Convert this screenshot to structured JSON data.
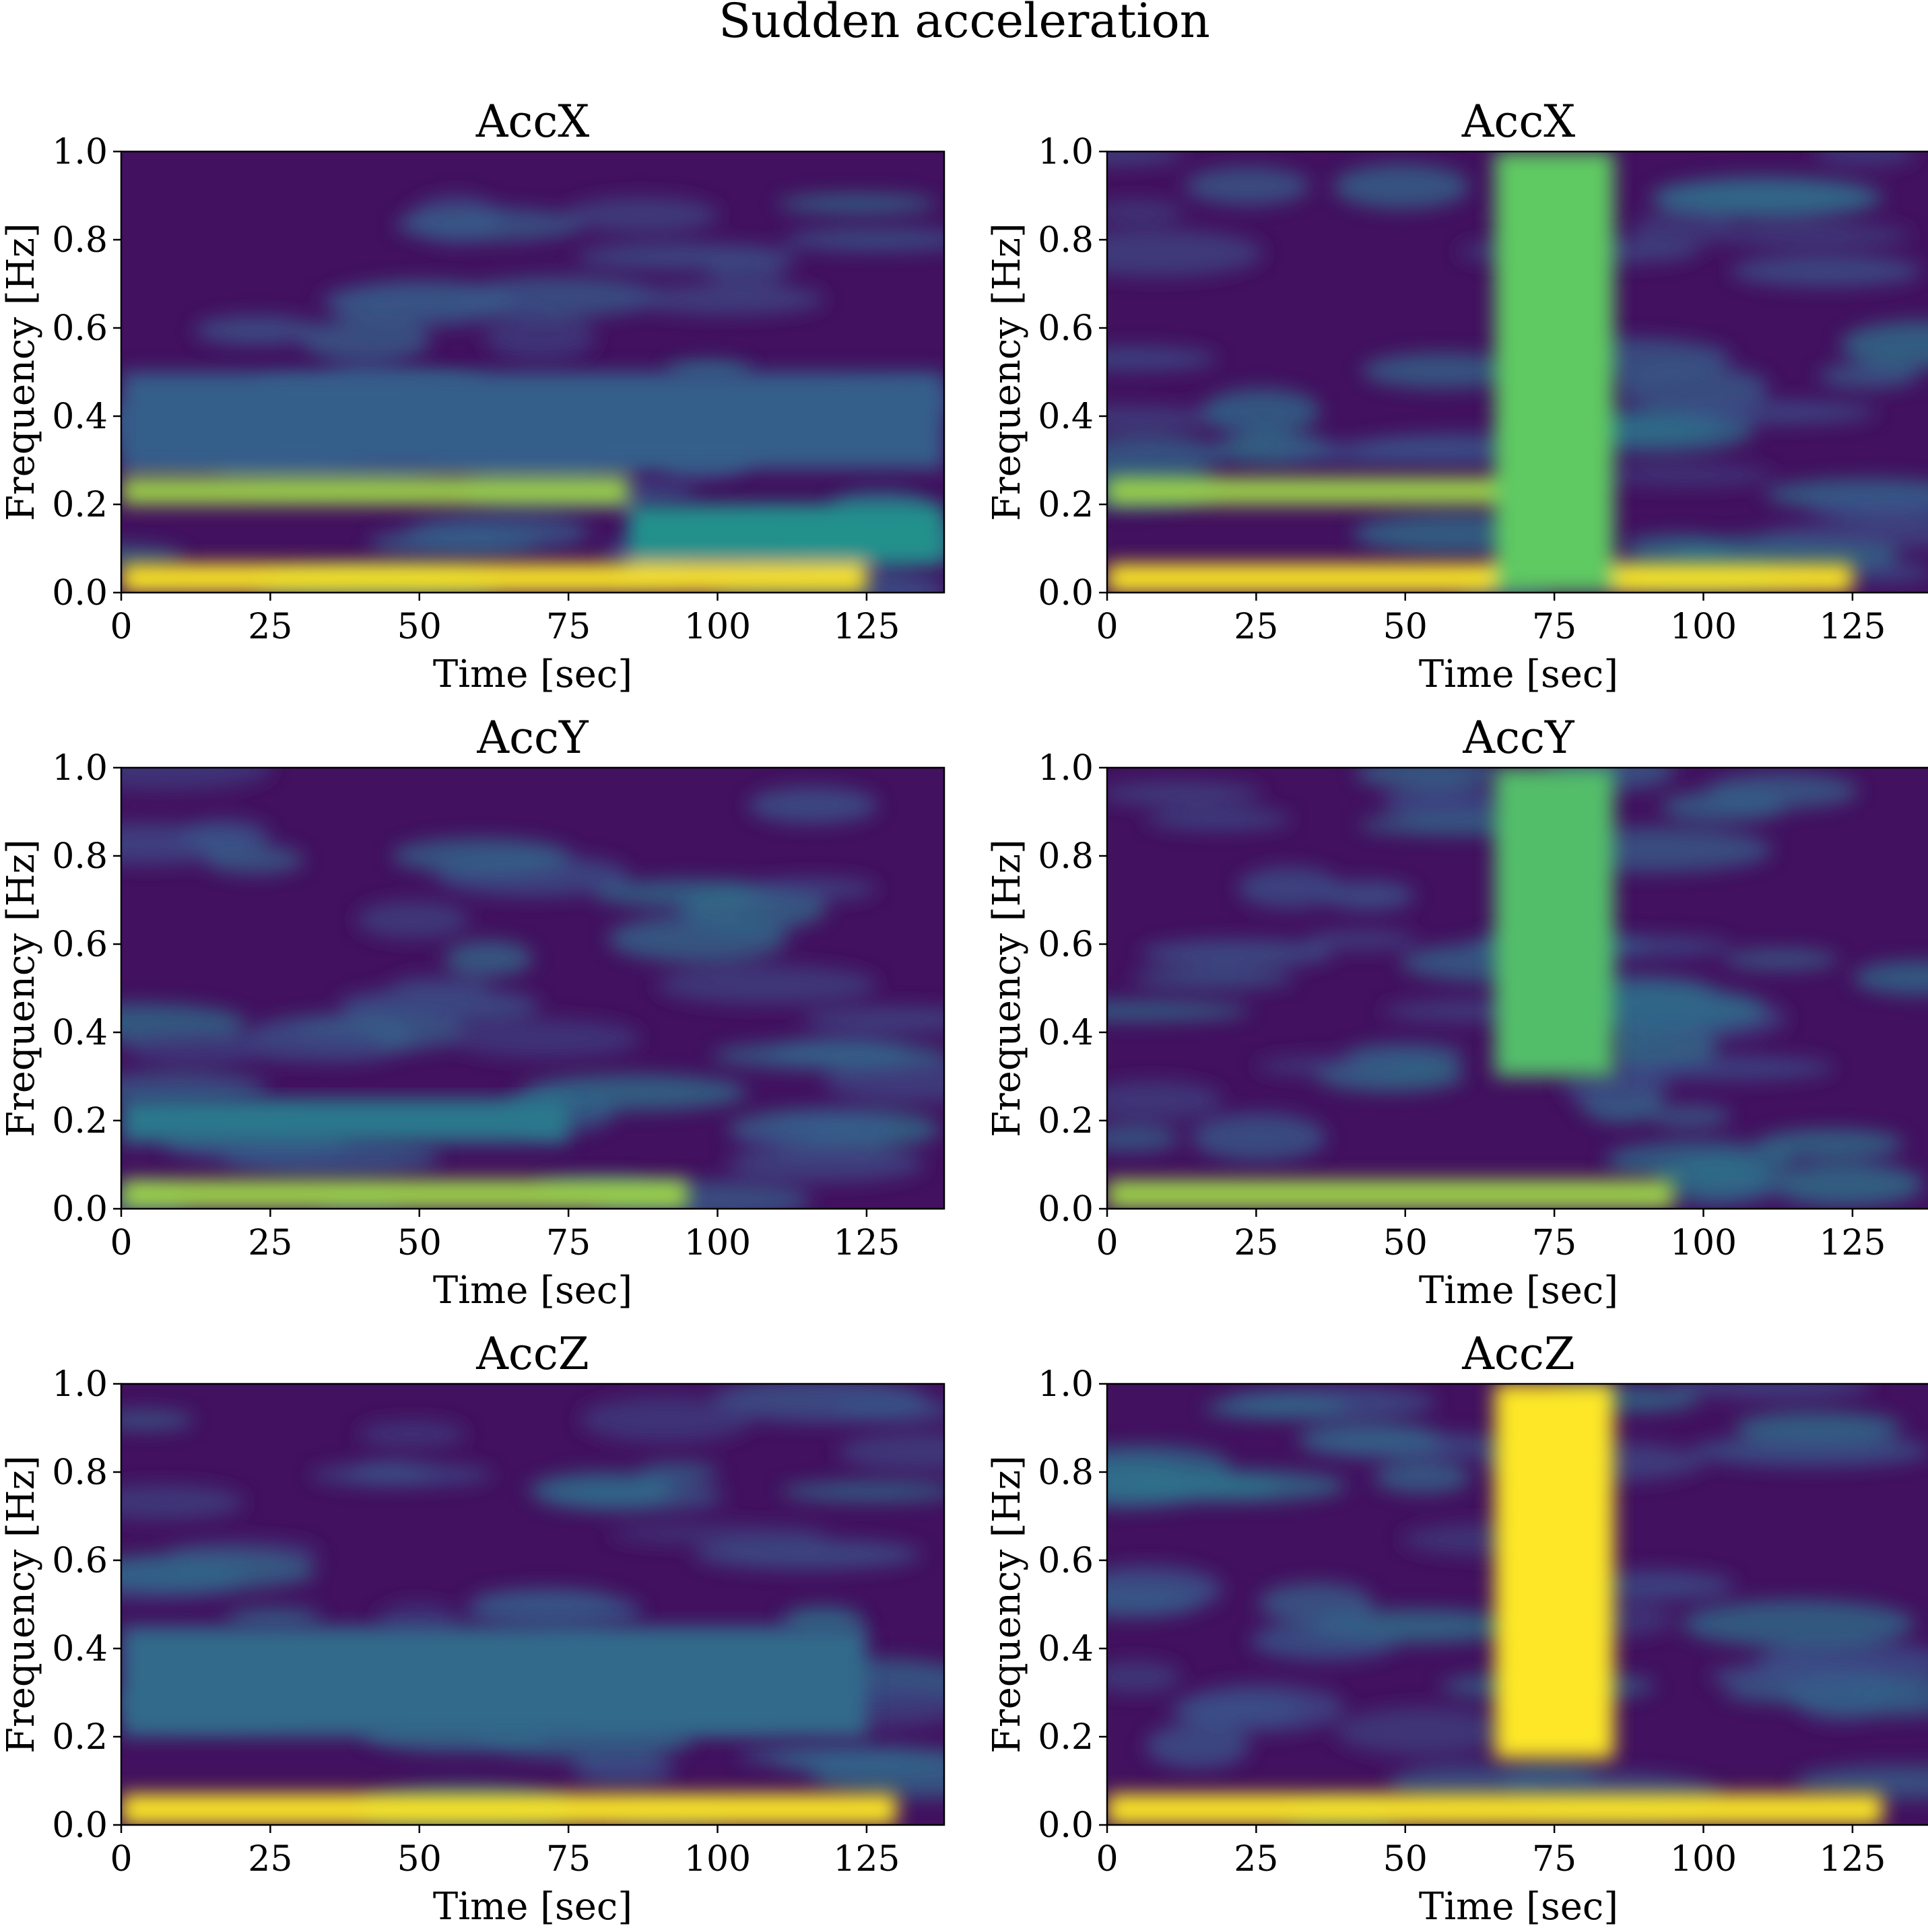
{
  "chart_data": {
    "title": "Sudden acceleration",
    "type": "heatmap",
    "colormap": "viridis",
    "panels": [
      {
        "title": "AccX",
        "xlabel": "Time [sec]",
        "ylabel": "Frequency [Hz]",
        "xlim": [
          0,
          138
        ],
        "ylim": [
          0.0,
          1.0
        ],
        "xticks": [
          "0",
          "25",
          "50",
          "75",
          "100",
          "125"
        ],
        "yticks": [
          "0.0",
          "0.2",
          "0.4",
          "0.6",
          "0.8",
          "1.0"
        ],
        "features": [
          {
            "kind": "hband",
            "f": [
              0.0,
              0.065
            ],
            "t": [
              0,
              125
            ],
            "intensity": 1.0
          },
          {
            "kind": "hband",
            "f": [
              0.2,
              0.26
            ],
            "t": [
              0,
              85
            ],
            "intensity": 0.85
          },
          {
            "kind": "hband",
            "f": [
              0.07,
              0.2
            ],
            "t": [
              85,
              138
            ],
            "intensity": 0.5
          },
          {
            "kind": "hband",
            "f": [
              0.28,
              0.5
            ],
            "t": [
              0,
              138
            ],
            "intensity": 0.3
          }
        ]
      },
      {
        "title": "AccX",
        "xlabel": "Time [sec]",
        "ylabel": "Frequency [Hz]",
        "xlim": [
          0,
          138
        ],
        "ylim": [
          0.0,
          1.0
        ],
        "xticks": [
          "0",
          "25",
          "50",
          "75",
          "100",
          "125"
        ],
        "yticks": [
          "0.0",
          "0.2",
          "0.4",
          "0.6",
          "0.8",
          "1.0"
        ],
        "features": [
          {
            "kind": "hband",
            "f": [
              0.0,
              0.065
            ],
            "t": [
              0,
              125
            ],
            "intensity": 1.0
          },
          {
            "kind": "hband",
            "f": [
              0.2,
              0.26
            ],
            "t": [
              0,
              85
            ],
            "intensity": 0.85
          },
          {
            "kind": "vband",
            "t": [
              65,
              85
            ],
            "f": [
              0.0,
              1.0
            ],
            "intensity": 0.75
          }
        ]
      },
      {
        "title": "AccY",
        "xlabel": "Time [sec]",
        "ylabel": "Frequency [Hz]",
        "xlim": [
          0,
          138
        ],
        "ylim": [
          0.0,
          1.0
        ],
        "xticks": [
          "0",
          "25",
          "50",
          "75",
          "100",
          "125"
        ],
        "yticks": [
          "0.0",
          "0.2",
          "0.4",
          "0.6",
          "0.8",
          "1.0"
        ],
        "features": [
          {
            "kind": "hband",
            "f": [
              0.0,
              0.065
            ],
            "t": [
              0,
              95
            ],
            "intensity": 0.85
          },
          {
            "kind": "hband",
            "f": [
              0.15,
              0.25
            ],
            "t": [
              0,
              75
            ],
            "intensity": 0.4
          }
        ]
      },
      {
        "title": "AccY",
        "xlabel": "Time [sec]",
        "ylabel": "Frequency [Hz]",
        "xlim": [
          0,
          138
        ],
        "ylim": [
          0.0,
          1.0
        ],
        "xticks": [
          "0",
          "25",
          "50",
          "75",
          "100",
          "125"
        ],
        "yticks": [
          "0.0",
          "0.2",
          "0.4",
          "0.6",
          "0.8",
          "1.0"
        ],
        "features": [
          {
            "kind": "hband",
            "f": [
              0.0,
              0.065
            ],
            "t": [
              0,
              95
            ],
            "intensity": 0.85
          },
          {
            "kind": "vband",
            "t": [
              65,
              85
            ],
            "f": [
              0.3,
              1.0
            ],
            "intensity": 0.7
          }
        ]
      },
      {
        "title": "AccZ",
        "xlabel": "Time [sec]",
        "ylabel": "Frequency [Hz]",
        "xlim": [
          0,
          138
        ],
        "ylim": [
          0.0,
          1.0
        ],
        "xticks": [
          "0",
          "25",
          "50",
          "75",
          "100",
          "125"
        ],
        "yticks": [
          "0.0",
          "0.2",
          "0.4",
          "0.6",
          "0.8",
          "1.0"
        ],
        "features": [
          {
            "kind": "hband",
            "f": [
              0.0,
              0.07
            ],
            "t": [
              0,
              130
            ],
            "intensity": 1.0
          },
          {
            "kind": "hband",
            "f": [
              0.2,
              0.45
            ],
            "t": [
              0,
              125
            ],
            "intensity": 0.35
          }
        ]
      },
      {
        "title": "AccZ",
        "xlabel": "Time [sec]",
        "ylabel": "Frequency [Hz]",
        "xlim": [
          0,
          138
        ],
        "ylim": [
          0.0,
          1.0
        ],
        "xticks": [
          "0",
          "25",
          "50",
          "75",
          "100",
          "125"
        ],
        "yticks": [
          "0.0",
          "0.2",
          "0.4",
          "0.6",
          "0.8",
          "1.0"
        ],
        "features": [
          {
            "kind": "hband",
            "f": [
              0.0,
              0.07
            ],
            "t": [
              0,
              130
            ],
            "intensity": 1.0
          },
          {
            "kind": "vband",
            "t": [
              65,
              85
            ],
            "f": [
              0.15,
              1.0
            ],
            "intensity": 1.0
          }
        ]
      }
    ]
  }
}
